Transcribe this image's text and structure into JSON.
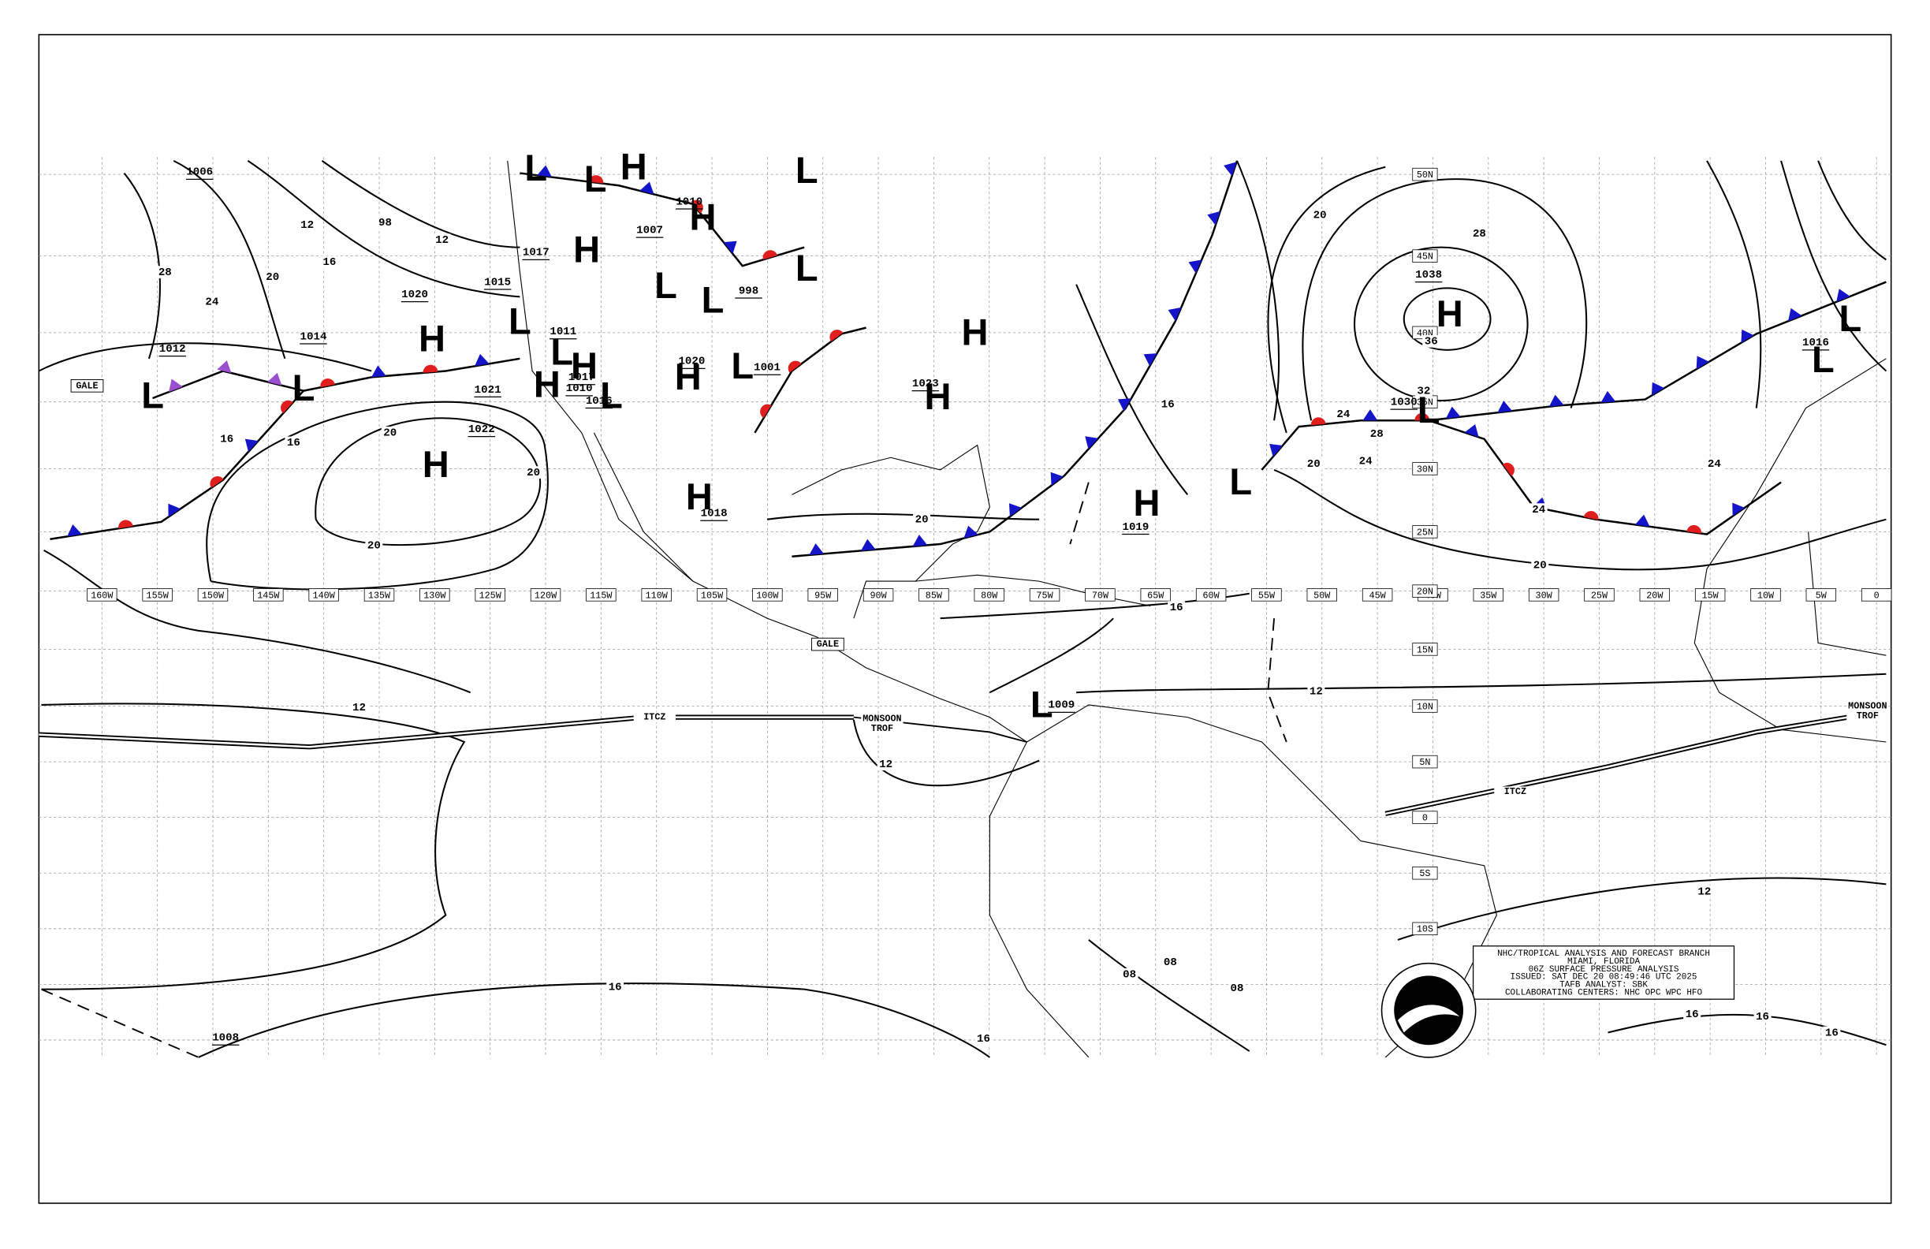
{
  "header": {
    "lines": [
      "NHC/TROPICAL ANALYSIS AND FORECAST BRANCH",
      "MIAMI, FLORIDA",
      "06Z SURFACE PRESSURE ANALYSIS",
      "ISSUED: SAT DEC 20 08:49:46 UTC 2025",
      "TAFB ANALYST: SBK",
      "COLLABORATING CENTERS: NHC OPC WPC HFO"
    ]
  },
  "map": {
    "symbol_colors": {
      "H": "#1414c8",
      "L": "#e01e1e"
    },
    "front_colors": {
      "cold": "#1414c8",
      "warm": "#e01e1e",
      "occluded": "#9a4fd0"
    },
    "longitude_labels": [
      "160W",
      "155W",
      "150W",
      "145W",
      "140W",
      "135W",
      "130W",
      "125W",
      "120W",
      "115W",
      "110W",
      "105W",
      "100W",
      "95W",
      "90W",
      "85W",
      "80W",
      "75W",
      "70W",
      "65W",
      "60W",
      "55W",
      "50W",
      "45W",
      "40W",
      "35W",
      "30W",
      "25W",
      "20W",
      "15W",
      "10W",
      "5W",
      "0"
    ],
    "latitude_labels": [
      "50N",
      "45N",
      "40N",
      "35N",
      "30N",
      "25N",
      "20N",
      "15N",
      "10N",
      "5N",
      "0",
      "5S",
      "10S"
    ],
    "pressure_centers": [
      "L",
      "L",
      "H",
      "H",
      "L",
      "L",
      "H",
      "H",
      "H",
      "L",
      "L",
      "L",
      "L",
      "L",
      "L",
      "H",
      "H",
      "L",
      "H",
      "L",
      "H",
      "H",
      "H",
      "H",
      "L",
      "L",
      "L",
      "H",
      "L",
      "L"
    ],
    "pressure_values": [
      "1006",
      "1012",
      "1014",
      "1020",
      "1021",
      "1022",
      "1015",
      "1017",
      "1007",
      "1010",
      "1011",
      "1017",
      "1010",
      "1016",
      "1020",
      "1001",
      "998",
      "1018",
      "1023",
      "1019",
      "1009",
      "1030",
      "1038",
      "1016",
      "1008"
    ],
    "isobar_labels": [
      "12",
      "16",
      "20",
      "24",
      "28",
      "12",
      "98",
      "16",
      "16",
      "20",
      "20",
      "20",
      "16",
      "20",
      "20",
      "28",
      "36",
      "32",
      "24",
      "28",
      "20",
      "24",
      "24",
      "20",
      "24",
      "16",
      "12",
      "12",
      "12",
      "12",
      "16",
      "16",
      "16",
      "16",
      "16",
      "08",
      "08",
      "08"
    ],
    "feature_labels": [
      "GALE",
      "GALE",
      "ITCZ",
      "MONSOON",
      "TROF",
      "ITCZ",
      "MONSOON",
      "TROF"
    ]
  }
}
